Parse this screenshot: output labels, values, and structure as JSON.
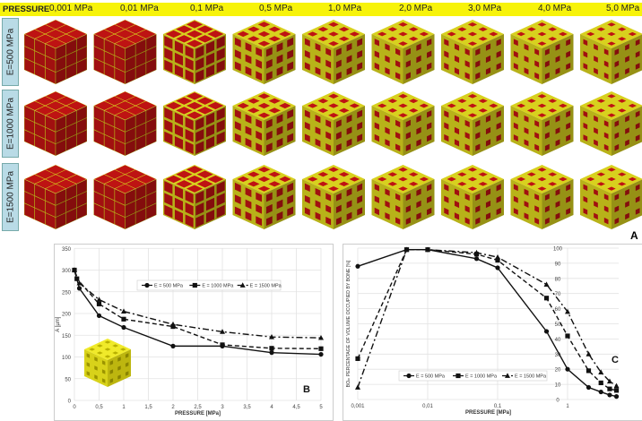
{
  "panel_a": {
    "header_label": "PRESSURE",
    "pressures": [
      "0,001 MPa",
      "0,01 MPa",
      "0,1 MPa",
      "0,5 MPa",
      "1,0 MPa",
      "2,0 MPa",
      "3,0 MPa",
      "4,0 MPa",
      "5,0 MPa"
    ],
    "rows": [
      "E=500 MPa",
      "E=1000 MPa",
      "E=1500 MPa"
    ],
    "panel_letter": "A",
    "colors": {
      "bone": "#c8c21c",
      "tissue": "#b01212",
      "header": "#f7f30a"
    }
  },
  "chart_data": [
    {
      "type": "line",
      "panel_letter": "B",
      "xlabel": "PRESSURE [MPa]",
      "ylabel": "A [µm]",
      "xlim": [
        0,
        5
      ],
      "ylim": [
        0,
        350
      ],
      "xticks": [
        "0",
        "0,5",
        "1",
        "1,5",
        "2",
        "2,5",
        "3",
        "3,5",
        "4",
        "4,5",
        "5"
      ],
      "yticks": [
        "0",
        "50",
        "100",
        "150",
        "200",
        "250",
        "300",
        "350"
      ],
      "grid": true,
      "legend": "top-center",
      "series": [
        {
          "name": "E = 500 MPa",
          "style": "solid",
          "marker": "circle",
          "x": [
            0,
            0.1,
            0.5,
            1,
            2,
            3,
            4,
            5
          ],
          "y": [
            300,
            258,
            195,
            168,
            125,
            125,
            110,
            106
          ]
        },
        {
          "name": "E = 1000 MPa",
          "style": "dashed",
          "marker": "square",
          "x": [
            0,
            0.05,
            0.5,
            1,
            2,
            3,
            4,
            5
          ],
          "y": [
            300,
            280,
            222,
            187,
            170,
            128,
            120,
            119
          ]
        },
        {
          "name": "E = 1500 MPa",
          "style": "dashdot",
          "marker": "triangle",
          "x": [
            0,
            0.1,
            0.5,
            1,
            2,
            3,
            4,
            5
          ],
          "y": [
            300,
            270,
            232,
            205,
            175,
            158,
            146,
            144
          ]
        }
      ]
    },
    {
      "type": "line",
      "panel_letter": "C",
      "xscale": "log",
      "xlabel": "PRESSURE [MPa]",
      "ylabel": "BOₘ PERCENTAGE OF VOLUME OCCUPIED BY BONE [%]",
      "xlim": [
        0.001,
        5
      ],
      "ylim": [
        0,
        100
      ],
      "xticks": [
        "0,001",
        "0,01",
        "0,1",
        "1"
      ],
      "yticks": [
        "0",
        "10",
        "20",
        "30",
        "40",
        "50",
        "60",
        "70",
        "80",
        "90",
        "100"
      ],
      "grid": true,
      "legend": "bottom-center",
      "series": [
        {
          "name": "E = 500 MPa",
          "style": "solid",
          "marker": "circle",
          "x": [
            0.001,
            0.005,
            0.01,
            0.05,
            0.1,
            0.5,
            1,
            2,
            3,
            4,
            5
          ],
          "y": [
            88,
            99,
            99,
            93,
            87,
            45,
            20,
            8,
            5,
            3,
            2
          ]
        },
        {
          "name": "E = 1000 MPa",
          "style": "dashed",
          "marker": "square",
          "x": [
            0.001,
            0.005,
            0.01,
            0.05,
            0.1,
            0.5,
            1,
            2,
            3,
            4,
            5
          ],
          "y": [
            27,
            99,
            99,
            96,
            92,
            67,
            42,
            19,
            11,
            7,
            6
          ]
        },
        {
          "name": "E = 1500 MPa",
          "style": "dashdot",
          "marker": "triangle",
          "x": [
            0.001,
            0.005,
            0.01,
            0.05,
            0.1,
            0.5,
            1,
            2,
            3,
            4,
            5
          ],
          "y": [
            8,
            99,
            99,
            97,
            94,
            76,
            58,
            30,
            18,
            12,
            9
          ]
        }
      ]
    }
  ]
}
